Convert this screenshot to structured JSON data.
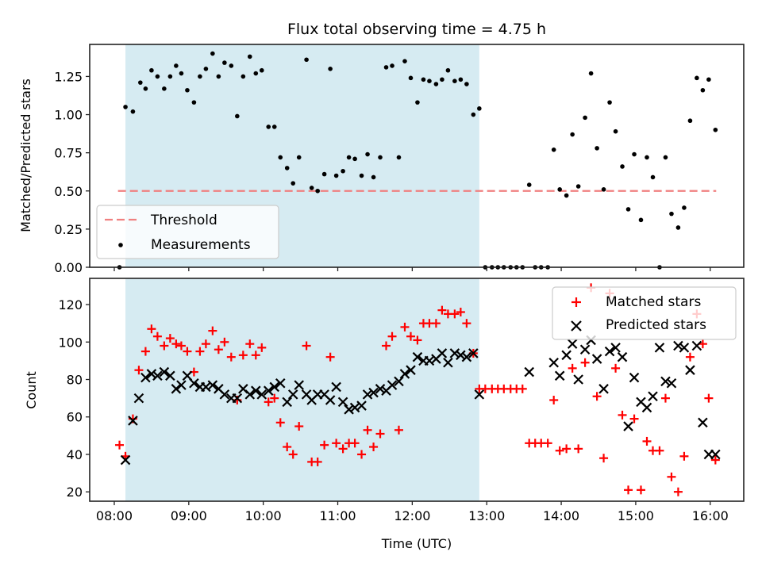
{
  "chart_data": [
    {
      "type": "scatter",
      "panel": "top",
      "title": "Flux total observing time = 4.75 h",
      "xlabel": "",
      "ylabel": "Matched/Predicted stars",
      "xlim": [
        7.67,
        16.45
      ],
      "ylim": [
        0.0,
        1.46
      ],
      "xticks": [
        8,
        9,
        10,
        11,
        12,
        13,
        14,
        15,
        16
      ],
      "xtick_labels": [
        "08:00",
        "09:00",
        "10:00",
        "11:00",
        "12:00",
        "13:00",
        "14:00",
        "15:00",
        "16:00"
      ],
      "yticks": [
        0.0,
        0.25,
        0.5,
        0.75,
        1.0,
        1.25
      ],
      "ytick_labels": [
        "0.00",
        "0.25",
        "0.50",
        "0.75",
        "1.00",
        "1.25"
      ],
      "shaded_span": {
        "x_start": 8.15,
        "x_end": 12.9,
        "color": "#add8e6"
      },
      "threshold": {
        "name": "Threshold",
        "value": 0.5,
        "x_start": 8.05,
        "x_end": 16.08,
        "color": "#f08080"
      },
      "legend": {
        "position": "lower-left",
        "entries": [
          "Threshold",
          "Measurements"
        ]
      },
      "series": [
        {
          "name": "Measurements",
          "color": "#000000",
          "marker": "dot",
          "x": [
            8.07,
            8.15,
            8.25,
            8.35,
            8.42,
            8.5,
            8.58,
            8.67,
            8.75,
            8.83,
            8.9,
            8.98,
            9.07,
            9.15,
            9.23,
            9.32,
            9.4,
            9.48,
            9.57,
            9.65,
            9.73,
            9.82,
            9.9,
            9.98,
            10.07,
            10.15,
            10.23,
            10.32,
            10.4,
            10.48,
            10.58,
            10.65,
            10.73,
            10.82,
            10.9,
            10.98,
            11.07,
            11.15,
            11.23,
            11.32,
            11.4,
            11.48,
            11.57,
            11.65,
            11.73,
            11.82,
            11.9,
            11.98,
            12.07,
            12.15,
            12.23,
            12.32,
            12.4,
            12.48,
            12.57,
            12.65,
            12.73,
            12.82,
            12.9,
            12.98,
            13.07,
            13.15,
            13.23,
            13.32,
            13.4,
            13.48,
            13.57,
            13.65,
            13.73,
            13.82,
            13.9,
            13.98,
            14.07,
            14.15,
            14.23,
            14.32,
            14.4,
            14.48,
            14.57,
            14.65,
            14.73,
            14.82,
            14.9,
            14.98,
            15.07,
            15.15,
            15.23,
            15.32,
            15.4,
            15.48,
            15.57,
            15.65,
            15.73,
            15.82,
            15.9,
            15.98,
            16.07
          ],
          "y": [
            0.0,
            1.05,
            1.02,
            1.21,
            1.17,
            1.29,
            1.25,
            1.17,
            1.25,
            1.32,
            1.27,
            1.16,
            1.08,
            1.25,
            1.3,
            1.4,
            1.25,
            1.34,
            1.32,
            0.99,
            1.25,
            1.38,
            1.27,
            1.29,
            0.92,
            0.92,
            0.72,
            0.65,
            0.55,
            0.72,
            1.36,
            0.52,
            0.5,
            0.61,
            1.3,
            0.6,
            0.63,
            0.72,
            0.71,
            0.6,
            0.74,
            0.59,
            0.72,
            1.31,
            1.32,
            0.72,
            1.35,
            1.24,
            1.08,
            1.23,
            1.22,
            1.2,
            1.23,
            1.29,
            1.22,
            1.23,
            1.2,
            1.0,
            1.04,
            0.0,
            0.0,
            0.0,
            0.0,
            0.0,
            0.0,
            0.0,
            0.54,
            0.0,
            0.0,
            0.0,
            0.77,
            0.51,
            0.47,
            0.87,
            0.53,
            0.98,
            1.27,
            0.78,
            0.51,
            1.08,
            0.89,
            0.66,
            0.38,
            0.74,
            0.31,
            0.72,
            0.59,
            0.0,
            0.72,
            0.35,
            0.26,
            0.39,
            0.96,
            1.24,
            1.16,
            1.23,
            0.9
          ]
        }
      ]
    },
    {
      "type": "scatter",
      "panel": "bottom",
      "title": "",
      "xlabel": "Time (UTC)",
      "ylabel": "Count",
      "xlim": [
        7.67,
        16.45
      ],
      "ylim": [
        15,
        134
      ],
      "xticks": [
        8,
        9,
        10,
        11,
        12,
        13,
        14,
        15,
        16
      ],
      "xtick_labels": [
        "08:00",
        "09:00",
        "10:00",
        "11:00",
        "12:00",
        "13:00",
        "14:00",
        "15:00",
        "16:00"
      ],
      "yticks": [
        20,
        40,
        60,
        80,
        100,
        120
      ],
      "ytick_labels": [
        "20",
        "40",
        "60",
        "80",
        "100",
        "120"
      ],
      "shaded_span": {
        "x_start": 8.15,
        "x_end": 12.9,
        "color": "#add8e6"
      },
      "legend": {
        "position": "top-right",
        "entries": [
          "Matched stars",
          "Predicted stars"
        ]
      },
      "series": [
        {
          "name": "Matched stars",
          "color": "#ff0000",
          "marker": "plus",
          "x": [
            8.07,
            8.15,
            8.25,
            8.33,
            8.42,
            8.5,
            8.58,
            8.67,
            8.75,
            8.83,
            8.9,
            8.98,
            9.07,
            9.15,
            9.23,
            9.32,
            9.4,
            9.48,
            9.57,
            9.65,
            9.73,
            9.82,
            9.9,
            9.98,
            10.07,
            10.15,
            10.23,
            10.32,
            10.4,
            10.48,
            10.58,
            10.65,
            10.73,
            10.82,
            10.9,
            10.98,
            11.07,
            11.15,
            11.23,
            11.32,
            11.4,
            11.48,
            11.57,
            11.65,
            11.73,
            11.82,
            11.9,
            11.98,
            12.07,
            12.15,
            12.23,
            12.32,
            12.4,
            12.48,
            12.57,
            12.65,
            12.73,
            12.82,
            12.9,
            12.98,
            13.07,
            13.15,
            13.23,
            13.32,
            13.4,
            13.48,
            13.57,
            13.65,
            13.73,
            13.82,
            13.9,
            13.98,
            14.07,
            14.15,
            14.23,
            14.32,
            14.4,
            14.48,
            14.57,
            14.65,
            14.73,
            14.82,
            14.9,
            14.98,
            15.07,
            15.15,
            15.23,
            15.32,
            15.4,
            15.48,
            15.57,
            15.65,
            15.73,
            15.82,
            15.9,
            15.98,
            16.07
          ],
          "y": [
            45,
            39,
            59,
            85,
            95,
            107,
            103,
            98,
            102,
            99,
            98,
            95,
            84,
            95,
            99,
            106,
            96,
            100,
            92,
            69,
            93,
            99,
            93,
            97,
            68,
            70,
            57,
            44,
            40,
            55,
            98,
            36,
            36,
            45,
            92,
            46,
            43,
            46,
            46,
            40,
            53,
            44,
            51,
            98,
            103,
            53,
            108,
            103,
            101,
            110,
            110,
            110,
            117,
            115,
            115,
            116,
            110,
            94,
            75,
            75,
            75,
            75,
            75,
            75,
            75,
            75,
            46,
            46,
            46,
            46,
            69,
            42,
            43,
            86,
            43,
            89,
            129,
            71,
            38,
            126,
            86,
            61,
            21,
            59,
            21,
            47,
            42,
            42,
            70,
            28,
            20,
            39,
            92,
            115,
            99,
            70,
            37
          ]
        },
        {
          "name": "Predicted stars",
          "color": "#000000",
          "marker": "x",
          "x": [
            8.15,
            8.25,
            8.33,
            8.42,
            8.5,
            8.58,
            8.67,
            8.75,
            8.83,
            8.9,
            8.98,
            9.07,
            9.15,
            9.23,
            9.32,
            9.4,
            9.48,
            9.57,
            9.65,
            9.73,
            9.82,
            9.9,
            9.98,
            10.07,
            10.15,
            10.23,
            10.32,
            10.4,
            10.48,
            10.58,
            10.65,
            10.73,
            10.82,
            10.9,
            10.98,
            11.07,
            11.15,
            11.23,
            11.32,
            11.4,
            11.48,
            11.57,
            11.65,
            11.73,
            11.82,
            11.9,
            11.98,
            12.07,
            12.15,
            12.23,
            12.32,
            12.4,
            12.48,
            12.57,
            12.65,
            12.73,
            12.82,
            12.9,
            13.57,
            13.9,
            13.98,
            14.07,
            14.15,
            14.23,
            14.32,
            14.4,
            14.48,
            14.57,
            14.65,
            14.73,
            14.82,
            14.9,
            14.98,
            15.07,
            15.15,
            15.23,
            15.32,
            15.4,
            15.48,
            15.57,
            15.65,
            15.73,
            15.82,
            15.9,
            15.98,
            16.07
          ],
          "y": [
            37,
            58,
            70,
            81,
            83,
            82,
            84,
            82,
            75,
            77,
            82,
            78,
            76,
            76,
            77,
            75,
            72,
            70,
            70,
            75,
            72,
            74,
            72,
            74,
            76,
            78,
            68,
            72,
            77,
            72,
            69,
            72,
            72,
            69,
            76,
            68,
            64,
            65,
            66,
            72,
            73,
            75,
            74,
            77,
            79,
            83,
            85,
            92,
            90,
            90,
            91,
            94,
            89,
            94,
            93,
            92,
            94,
            72,
            84,
            89,
            82,
            93,
            99,
            80,
            96,
            101,
            91,
            75,
            95,
            97,
            92,
            55,
            81,
            68,
            65,
            71,
            97,
            79,
            78,
            98,
            97,
            85,
            98,
            57,
            40,
            40
          ]
        }
      ]
    }
  ]
}
